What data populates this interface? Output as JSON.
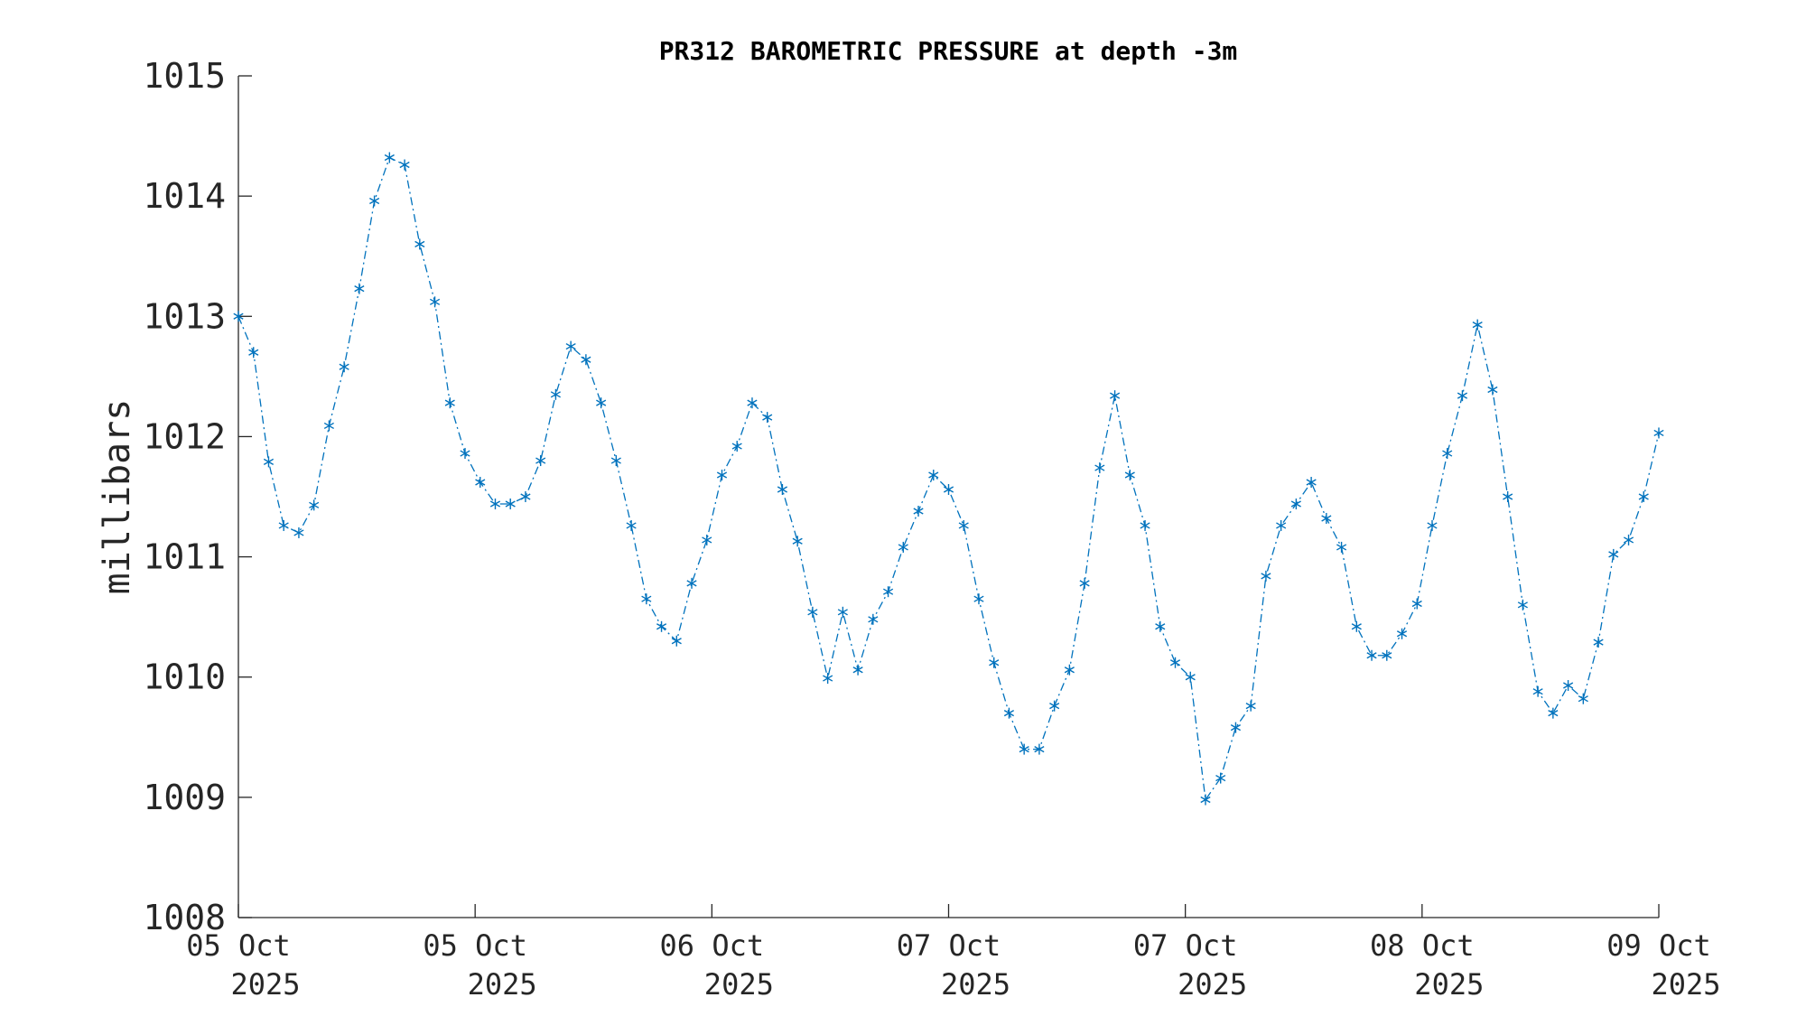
{
  "chart_data": {
    "type": "line",
    "title": "PR312 BAROMETRIC PRESSURE at depth -3m",
    "xlabel": "",
    "ylabel": "millibars",
    "ylim": [
      1008,
      1015
    ],
    "xlim": [
      0,
      94
    ],
    "yticks": [
      "1008",
      "1009",
      "1010",
      "1011",
      "1012",
      "1013",
      "1014",
      "1015"
    ],
    "xticks": [
      {
        "line1": "05 Oct",
        "line2": "2025"
      },
      {
        "line1": "05 Oct",
        "line2": "2025"
      },
      {
        "line1": "06 Oct",
        "line2": "2025"
      },
      {
        "line1": "07 Oct",
        "line2": "2025"
      },
      {
        "line1": "07 Oct",
        "line2": "2025"
      },
      {
        "line1": "08 Oct",
        "line2": "2025"
      },
      {
        "line1": "09 Oct",
        "line2": "2025"
      }
    ],
    "series": [
      {
        "name": "pressure",
        "color": "#0072BD",
        "marker": "asterisk",
        "linestyle": "dash-dot",
        "values": [
          1013.0,
          1012.7,
          1011.79,
          1011.26,
          1011.2,
          1011.43,
          1012.09,
          1012.58,
          1013.23,
          1013.96,
          1014.32,
          1014.26,
          1013.6,
          1013.12,
          1012.28,
          1011.86,
          1011.62,
          1011.44,
          1011.44,
          1011.5,
          1011.8,
          1012.35,
          1012.75,
          1012.64,
          1012.28,
          1011.8,
          1011.26,
          1010.65,
          1010.42,
          1010.3,
          1010.78,
          1011.14,
          1011.68,
          1011.92,
          1012.28,
          1012.16,
          1011.56,
          1011.13,
          1010.54,
          1009.99,
          1010.54,
          1010.06,
          1010.48,
          1010.71,
          1011.08,
          1011.38,
          1011.68,
          1011.56,
          1011.26,
          1010.65,
          1010.12,
          1009.7,
          1009.4,
          1009.4,
          1009.76,
          1010.06,
          1010.78,
          1011.74,
          1012.34,
          1011.68,
          1011.26,
          1010.42,
          1010.12,
          1010.0,
          1008.98,
          1009.16,
          1009.58,
          1009.76,
          1010.84,
          1011.26,
          1011.44,
          1011.62,
          1011.32,
          1011.08,
          1010.42,
          1010.18,
          1010.18,
          1010.36,
          1010.61,
          1011.26,
          1011.86,
          1012.34,
          1012.93,
          1012.39,
          1011.5,
          1010.6,
          1009.88,
          1009.7,
          1009.93,
          1009.82,
          1010.29,
          1011.02,
          1011.14,
          1011.5,
          1012.03
        ]
      }
    ]
  }
}
